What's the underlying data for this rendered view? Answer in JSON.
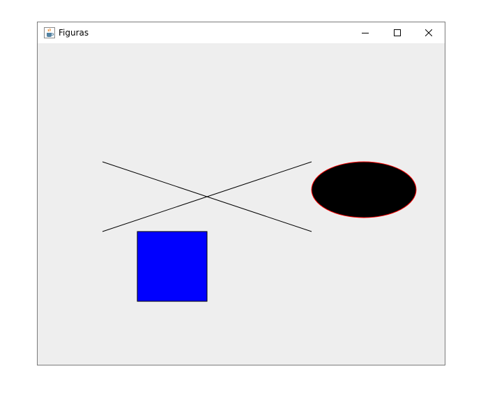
{
  "window": {
    "title": "Figuras",
    "app_icon": "java-coffee-icon",
    "controls": [
      "minimize-icon",
      "maximize-icon",
      "close-icon"
    ]
  },
  "canvas": {
    "background": "#eeeeee",
    "shapes": [
      {
        "kind": "line",
        "stroke": "#000000"
      },
      {
        "kind": "line",
        "stroke": "#000000"
      },
      {
        "kind": "ellipse",
        "fill": "#000000",
        "stroke": "#ff0000"
      },
      {
        "kind": "rectangle",
        "fill": "#0000ff",
        "stroke": "#000000"
      }
    ]
  }
}
